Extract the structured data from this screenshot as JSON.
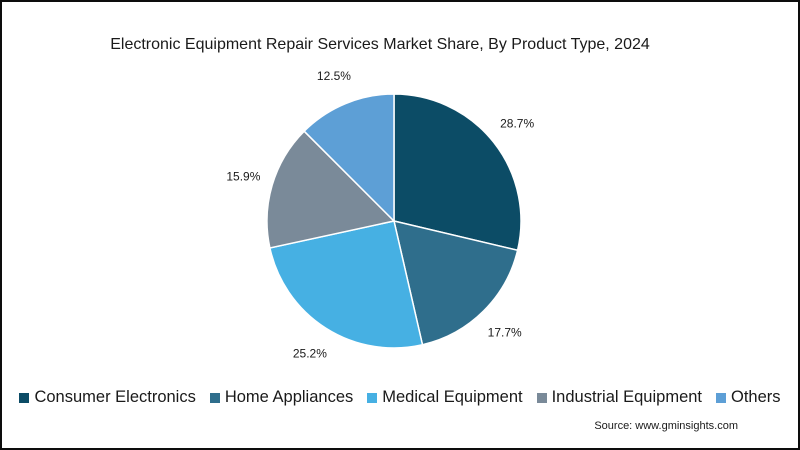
{
  "chart_data": {
    "type": "pie",
    "title": "Electronic Equipment Repair Services Market Share, By Product Type, 2024",
    "slices": [
      {
        "name": "Consumer Electronics",
        "value": 28.7,
        "label": "28.7%",
        "color": "#0c4c66"
      },
      {
        "name": "Home Appliances",
        "value": 17.7,
        "label": "17.7%",
        "color": "#2f6e8c"
      },
      {
        "name": "Medical Equipment",
        "value": 25.2,
        "label": "25.2%",
        "color": "#46b0e3"
      },
      {
        "name": "Industrial Equipment",
        "value": 15.9,
        "label": "15.9%",
        "color": "#7a8a99"
      },
      {
        "name": "Others",
        "value": 12.5,
        "label": "12.5%",
        "color": "#5d9fd6"
      }
    ],
    "legend_position": "bottom"
  },
  "source": "Source: www.gminsights.com"
}
